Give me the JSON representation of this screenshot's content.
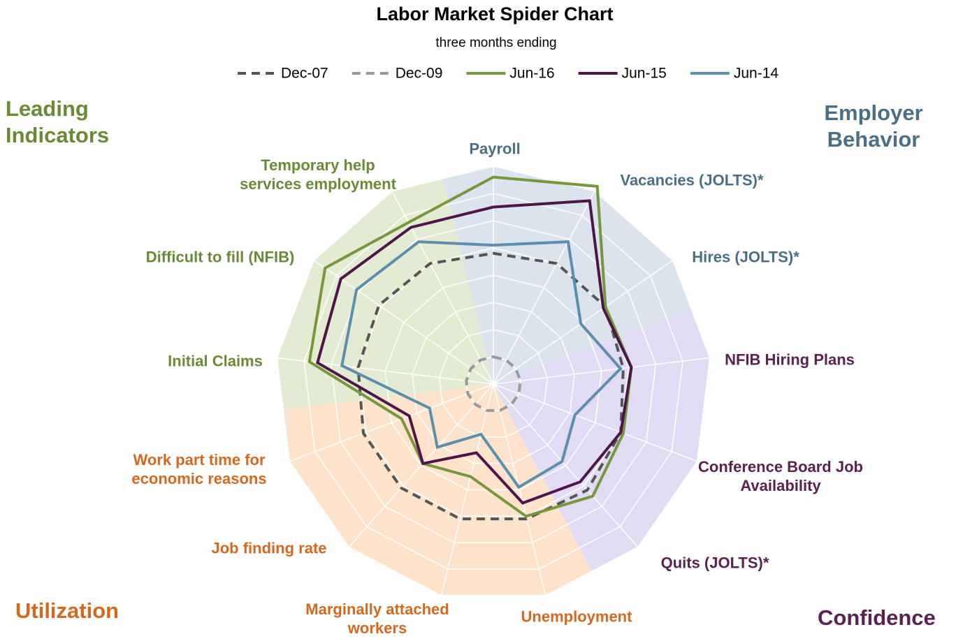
{
  "chart_data": {
    "type": "radar",
    "title": "Labor Market Spider Chart",
    "subtitle": "three months ending",
    "categories": [
      "Payroll",
      "Vacancies (JOLTS)*",
      "Hires (JOLTS)*",
      "NFIB Hiring Plans",
      "Conference Board Job Availability",
      "Quits (JOLTS)*",
      "Unemployment",
      "Marginally attached workers",
      "Job finding rate",
      "Work part time for economic reasons",
      "Initial Claims",
      "Difficult to fill (NFIB)",
      "Temporary help services employment"
    ],
    "rlim": [
      0,
      8
    ],
    "groups": [
      {
        "name": "Employer Behavior",
        "color": "#4a6f85",
        "fill": "#dbe4ec",
        "axes": [
          0,
          1,
          2
        ]
      },
      {
        "name": "Confidence",
        "color": "#5b2150",
        "fill": "#e1dcf3",
        "axes": [
          3,
          4,
          5
        ]
      },
      {
        "name": "Utilization",
        "color": "#d2691e",
        "fill": "#fde3cc",
        "axes": [
          6,
          7,
          8,
          9
        ]
      },
      {
        "name": "Leading Indicators",
        "color": "#6b8a35",
        "fill": "#e4ebd3",
        "axes": [
          10,
          11,
          12
        ]
      }
    ],
    "series": [
      {
        "name": "Dec-07",
        "color": "#555555",
        "dashed": true,
        "values": [
          4.8,
          5.0,
          5.0,
          4.8,
          5.0,
          5.2,
          5.1,
          5.1,
          5.1,
          5.1,
          5.0,
          5.1,
          5.0
        ]
      },
      {
        "name": "Dec-09",
        "color": "#999999",
        "dashed": true,
        "values": [
          1.0,
          1.0,
          1.0,
          1.0,
          1.0,
          1.0,
          1.0,
          1.0,
          1.0,
          1.0,
          1.0,
          1.0,
          1.0
        ]
      },
      {
        "name": "Jun-16",
        "color": "#76973a",
        "dashed": false,
        "values": [
          7.6,
          8.2,
          5.0,
          5.1,
          5.1,
          5.5,
          5.0,
          3.5,
          3.9,
          3.6,
          6.8,
          7.5,
          6.7
        ]
      },
      {
        "name": "Jun-15",
        "color": "#4f1548",
        "dashed": false,
        "values": [
          6.5,
          7.6,
          4.9,
          5.1,
          5.0,
          4.8,
          4.5,
          2.6,
          3.9,
          3.3,
          6.5,
          6.8,
          6.5
        ]
      },
      {
        "name": "Jun-14",
        "color": "#5b8fab",
        "dashed": false,
        "values": [
          5.1,
          5.9,
          3.9,
          4.7,
          3.2,
          3.8,
          3.9,
          1.9,
          3.1,
          2.5,
          5.6,
          6.1,
          5.9
        ]
      }
    ]
  }
}
